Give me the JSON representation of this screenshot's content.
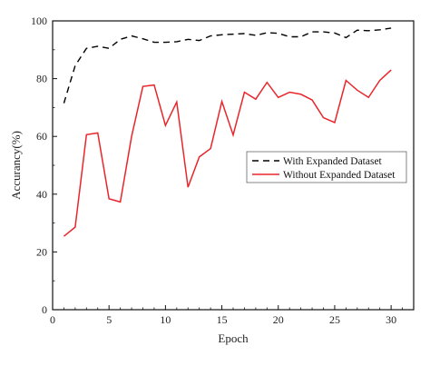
{
  "chart_data": {
    "type": "line",
    "title": "",
    "xlabel": "Epoch",
    "ylabel": "Accurancy(%)",
    "xlim": [
      0,
      32
    ],
    "ylim": [
      0,
      100
    ],
    "xticks": [
      0,
      5,
      10,
      15,
      20,
      25,
      30
    ],
    "yticks": [
      0,
      20,
      40,
      60,
      80,
      100
    ],
    "legend_position": "right-middle",
    "x": [
      1,
      2,
      3,
      4,
      5,
      6,
      7,
      8,
      9,
      10,
      11,
      12,
      13,
      14,
      15,
      16,
      17,
      18,
      19,
      20,
      21,
      22,
      23,
      24,
      25,
      26,
      27,
      28,
      29,
      30
    ],
    "series": [
      {
        "name": "With Expanded Dataset",
        "color": "#000000",
        "style": "dashed",
        "values": [
          71.5,
          84.5,
          90.5,
          91.2,
          90.5,
          93.6,
          94.8,
          93.8,
          92.6,
          92.6,
          92.8,
          93.6,
          93.2,
          94.8,
          95.2,
          95.4,
          95.6,
          95.0,
          95.9,
          95.7,
          94.5,
          94.5,
          96.2,
          96.2,
          95.8,
          94.2,
          96.8,
          96.6,
          96.9,
          97.5
        ]
      },
      {
        "name": "Without Expanded Dataset",
        "color": "#e8262b",
        "style": "solid",
        "values": [
          25.4,
          28.6,
          60.6,
          61.2,
          38.4,
          37.3,
          60.0,
          77.3,
          77.8,
          63.8,
          71.9,
          42.4,
          52.9,
          55.8,
          72.1,
          60.5,
          75.3,
          72.9,
          78.7,
          73.5,
          75.3,
          74.6,
          72.6,
          66.5,
          64.8,
          79.4,
          76.0,
          73.5,
          79.4,
          83.0
        ]
      }
    ]
  }
}
